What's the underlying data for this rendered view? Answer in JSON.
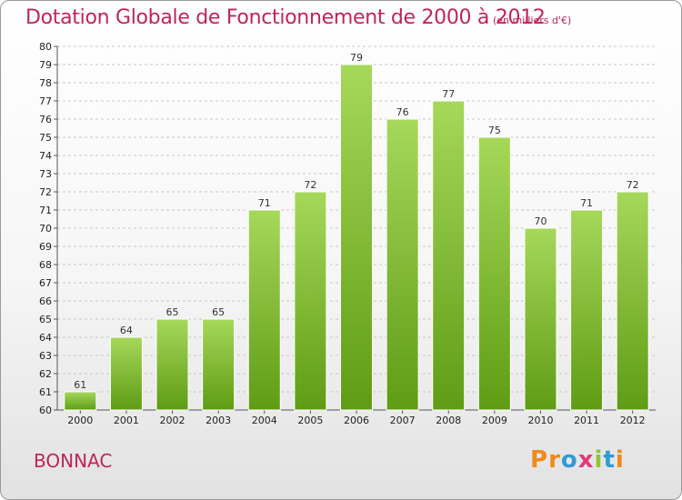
{
  "title": "Dotation Globale de Fonctionnement de 2000 à 2012",
  "subtitle": "(en milliers d'€)",
  "commune": "BONNAC",
  "brand": {
    "letters": [
      "P",
      "r",
      "o",
      "x",
      "i",
      "t",
      "i"
    ],
    "colors": [
      "#f08a1c",
      "#f08a1c",
      "#2e9bd6",
      "#e13a7a",
      "#8fc33a",
      "#2e9bd6",
      "#f08a1c"
    ]
  },
  "colors": {
    "accent": "#c0245a",
    "bar_top": "#a6d85a",
    "bar_bottom": "#5f9c14",
    "grid": "#c8c8c8"
  },
  "chart_data": {
    "type": "bar",
    "title": "Dotation Globale de Fonctionnement de 2000 à 2012",
    "subtitle": "(en milliers d'€)",
    "xlabel": "",
    "ylabel": "",
    "categories": [
      "2000",
      "2001",
      "2002",
      "2003",
      "2004",
      "2005",
      "2006",
      "2007",
      "2008",
      "2009",
      "2010",
      "2011",
      "2012"
    ],
    "values": [
      61,
      64,
      65,
      65,
      71,
      72,
      79,
      76,
      77,
      75,
      70,
      71,
      72
    ],
    "ylim": [
      60,
      80
    ],
    "yticks": [
      60,
      61,
      62,
      63,
      64,
      65,
      66,
      67,
      68,
      69,
      70,
      71,
      72,
      73,
      74,
      75,
      76,
      77,
      78,
      79,
      80
    ],
    "grid": true
  }
}
